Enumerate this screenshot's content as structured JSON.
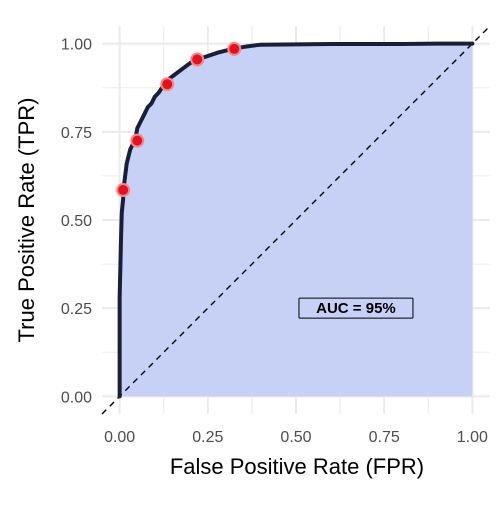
{
  "chart_data": {
    "type": "line",
    "xlabel": "False Positive Rate (FPR)",
    "ylabel": "True Positive Rate (TPR)",
    "xlim": [
      -0.05,
      1.05
    ],
    "ylim": [
      -0.05,
      1.05
    ],
    "x_ticks": [
      0.0,
      0.25,
      0.5,
      0.75,
      1.0
    ],
    "x_tick_labels": [
      "0.00",
      "0.25",
      "0.50",
      "0.75",
      "1.00"
    ],
    "y_ticks": [
      0.0,
      0.25,
      0.5,
      0.75,
      1.0
    ],
    "y_tick_labels": [
      "0.00",
      "0.25",
      "0.50",
      "0.75",
      "1.00"
    ],
    "grid": true,
    "series": [
      {
        "type": "line",
        "x": [
          0.0,
          0.0,
          0.004,
          0.006,
          0.01,
          0.01,
          0.015,
          0.02,
          0.025,
          0.03,
          0.04,
          0.045,
          0.05,
          0.06,
          0.07,
          0.08,
          0.09,
          0.1,
          0.11,
          0.12,
          0.13,
          0.14,
          0.16,
          0.18,
          0.2,
          0.22,
          0.25,
          0.28,
          0.3,
          0.32,
          0.36,
          0.4,
          0.5,
          0.6,
          0.7,
          0.8,
          0.9,
          1.0
        ],
        "y": [
          0.0,
          0.28,
          0.45,
          0.52,
          0.56,
          0.58,
          0.62,
          0.66,
          0.68,
          0.7,
          0.72,
          0.73,
          0.76,
          0.78,
          0.8,
          0.82,
          0.83,
          0.85,
          0.86,
          0.875,
          0.885,
          0.9,
          0.915,
          0.93,
          0.945,
          0.955,
          0.965,
          0.975,
          0.98,
          0.985,
          0.992,
          0.997,
          0.998,
          0.999,
          0.999,
          0.999,
          1.0,
          1.0
        ]
      },
      {
        "type": "scatter",
        "x": [
          0.01,
          0.05,
          0.135,
          0.22,
          0.325
        ],
        "y": [
          0.585,
          0.725,
          0.885,
          0.955,
          0.985
        ]
      },
      {
        "type": "line",
        "style": "dashed",
        "x": [
          -0.05,
          1.05
        ],
        "y": [
          -0.05,
          1.05
        ]
      }
    ],
    "annotation": {
      "text": "AUC =  95%",
      "x": 0.67,
      "y": 0.25
    },
    "colors": {
      "panel_bg": "#ffffff",
      "grid": "#ebebeb",
      "area_fill": "#c6d1f5",
      "curve": "#1a1f38",
      "point_fill": "#e8101f",
      "point_stroke": "#f08a8a",
      "diagonal": "#000000"
    }
  }
}
